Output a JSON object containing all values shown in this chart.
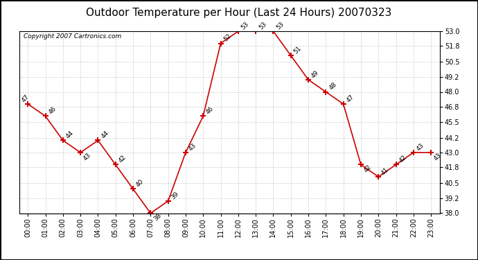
{
  "title": "Outdoor Temperature per Hour (Last 24 Hours) 20070323",
  "copyright": "Copyright 2007 Cartronics.com",
  "hours": [
    "00:00",
    "01:00",
    "02:00",
    "03:00",
    "04:00",
    "05:00",
    "06:00",
    "07:00",
    "08:00",
    "09:00",
    "10:00",
    "11:00",
    "12:00",
    "13:00",
    "14:00",
    "15:00",
    "16:00",
    "17:00",
    "18:00",
    "19:00",
    "20:00",
    "21:00",
    "22:00",
    "23:00"
  ],
  "temps": [
    47,
    46,
    44,
    43,
    44,
    42,
    40,
    38,
    39,
    43,
    46,
    52,
    53,
    53,
    53,
    51,
    49,
    48,
    47,
    42,
    41,
    42,
    43,
    43
  ],
  "ylim": [
    38.0,
    53.0
  ],
  "yticks": [
    38.0,
    39.2,
    40.5,
    41.8,
    43.0,
    44.2,
    45.5,
    46.8,
    48.0,
    49.2,
    50.5,
    51.8,
    53.0
  ],
  "line_color": "#cc0000",
  "marker_color": "#cc0000",
  "bg_color": "#ffffff",
  "grid_color": "#cccccc",
  "title_fontsize": 11,
  "copyright_fontsize": 6.5,
  "label_fontsize": 6.5,
  "tick_fontsize": 7
}
